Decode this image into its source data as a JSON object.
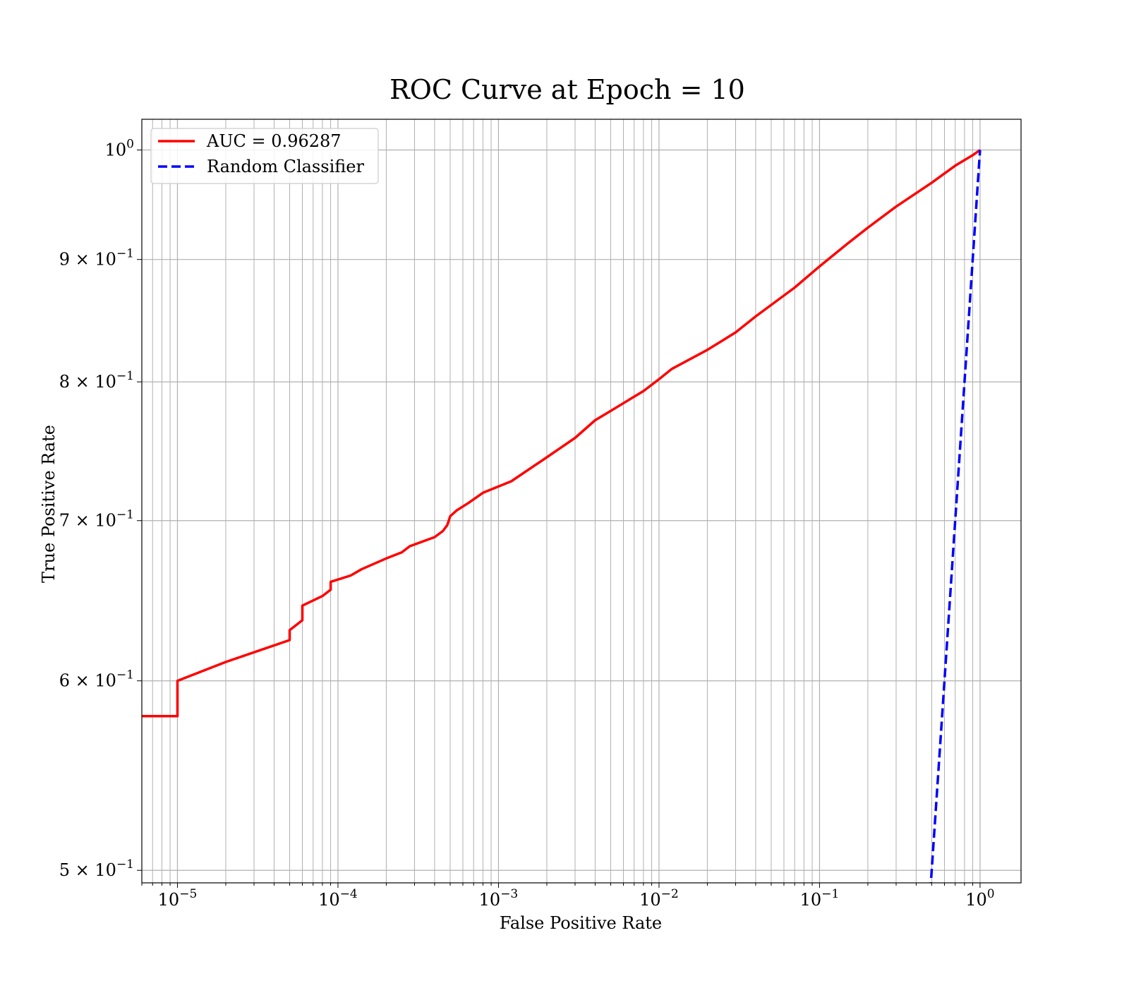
{
  "chart_data": {
    "type": "line",
    "title": "ROC Curve at Epoch = 10",
    "xlabel": "False Positive Rate",
    "ylabel": "True Positive Rate",
    "xscale": "log",
    "yscale": "log",
    "xlim": [
      6e-06,
      1.8
    ],
    "ylim": [
      0.494,
      1.03
    ],
    "grid": "both (major and minor)",
    "legend_position": "upper-left",
    "x_ticks": [
      {
        "value": 1e-05,
        "base": "10",
        "exp": "−5"
      },
      {
        "value": 0.0001,
        "base": "10",
        "exp": "−4"
      },
      {
        "value": 0.001,
        "base": "10",
        "exp": "−3"
      },
      {
        "value": 0.01,
        "base": "10",
        "exp": "−2"
      },
      {
        "value": 0.1,
        "base": "10",
        "exp": "−1"
      },
      {
        "value": 1,
        "base": "10",
        "exp": "0"
      }
    ],
    "y_ticks": [
      {
        "value": 0.5,
        "base": "5 × 10",
        "exp": "−1"
      },
      {
        "value": 0.6,
        "base": "6 × 10",
        "exp": "−1"
      },
      {
        "value": 0.7,
        "base": "7 × 10",
        "exp": "−1"
      },
      {
        "value": 0.8,
        "base": "8 × 10",
        "exp": "−1"
      },
      {
        "value": 0.9,
        "base": "9 × 10",
        "exp": "−1"
      },
      {
        "value": 1.0,
        "base": "10",
        "exp": "0"
      }
    ],
    "series": [
      {
        "name": "AUC = 0.96287",
        "color": "#ff0000",
        "style": "solid",
        "x": [
          6e-06,
          1e-05,
          1e-05,
          2e-05,
          5e-05,
          5e-05,
          6e-05,
          6e-05,
          8e-05,
          9e-05,
          9e-05,
          0.00012,
          0.00014,
          0.0002,
          0.00025,
          0.00028,
          0.0004,
          0.00045,
          0.00048,
          0.0005,
          0.00055,
          0.00065,
          0.0008,
          0.0012,
          0.002,
          0.003,
          0.004,
          0.005,
          0.008,
          0.01,
          0.012,
          0.02,
          0.03,
          0.04,
          0.07,
          0.1,
          0.15,
          0.2,
          0.3,
          0.5,
          0.7,
          0.9,
          1.0
        ],
        "y": [
          0.58,
          0.58,
          0.6,
          0.611,
          0.624,
          0.63,
          0.636,
          0.645,
          0.651,
          0.655,
          0.66,
          0.664,
          0.668,
          0.675,
          0.679,
          0.683,
          0.689,
          0.693,
          0.697,
          0.703,
          0.707,
          0.712,
          0.719,
          0.727,
          0.744,
          0.758,
          0.771,
          0.778,
          0.793,
          0.802,
          0.81,
          0.825,
          0.839,
          0.852,
          0.876,
          0.894,
          0.914,
          0.928,
          0.947,
          0.969,
          0.985,
          0.995,
          1.0
        ]
      },
      {
        "name": "Random Classifier",
        "color": "#0000ff",
        "style": "dashed",
        "x": [
          0.49,
          0.6,
          0.7,
          0.8,
          0.9,
          1.0
        ],
        "y": [
          0.49,
          0.6,
          0.7,
          0.8,
          0.9,
          1.0
        ]
      }
    ]
  }
}
